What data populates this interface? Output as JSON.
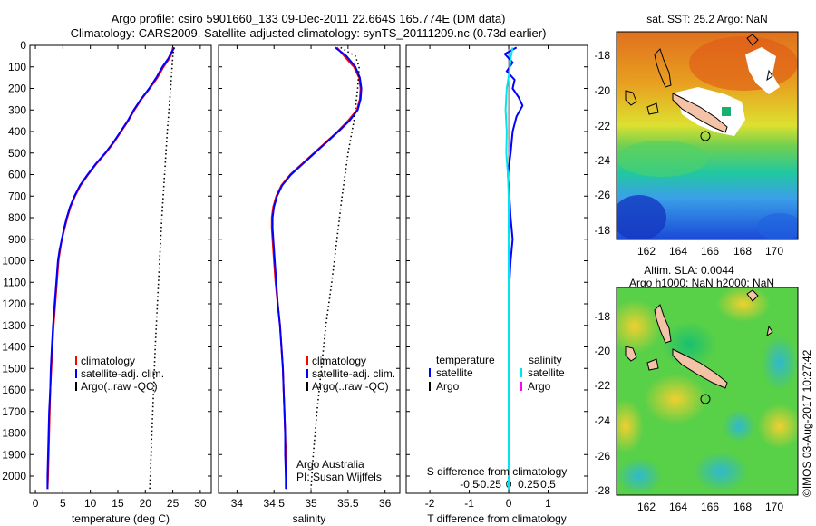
{
  "header": {
    "title_line1": "Argo profile: csiro 5901660_133 09-Dec-2011 22.664S 165.774E (DM data)",
    "title_line2": "Climatology: CARS2009. Satellite-adjusted climatology: synTS_20111209.nc (0.73d earlier)"
  },
  "colors": {
    "climatology": "#ff0000",
    "satellite": "#0000ff",
    "argo": "#000000",
    "satellite_s": "#00e5ee",
    "argo_s": "#ff00ff",
    "land": "#f4c2a6"
  },
  "chart_data": [
    {
      "type": "line",
      "panel": "temperature",
      "xlabel": "temperature (deg C)",
      "ylabel": "",
      "xlim": [
        -1,
        32
      ],
      "ylim": [
        2080,
        0
      ],
      "xticks": [
        0,
        5,
        10,
        15,
        20,
        25,
        30
      ],
      "yticks": [
        0,
        100,
        200,
        300,
        400,
        500,
        600,
        700,
        800,
        900,
        1000,
        1100,
        1200,
        1300,
        1400,
        1500,
        1600,
        1700,
        1800,
        1900,
        2000
      ],
      "legend": [
        "climatology",
        "satellite-adj. clim.",
        "Argo(..raw -QC)"
      ],
      "series": [
        {
          "name": "climatology",
          "style": "solid",
          "points": [
            [
              25,
              10
            ],
            [
              24.9,
              30
            ],
            [
              24.4,
              60
            ],
            [
              23.3,
              100
            ],
            [
              22.2,
              150
            ],
            [
              20.8,
              200
            ],
            [
              19.3,
              250
            ],
            [
              18,
              300
            ],
            [
              16.9,
              350
            ],
            [
              15.6,
              400
            ],
            [
              14.3,
              450
            ],
            [
              12.8,
              500
            ],
            [
              11.1,
              550
            ],
            [
              9.6,
              600
            ],
            [
              8.2,
              650
            ],
            [
              7.2,
              700
            ],
            [
              6.4,
              750
            ],
            [
              5.8,
              800
            ],
            [
              5.3,
              850
            ],
            [
              4.8,
              900
            ],
            [
              4.5,
              950
            ],
            [
              4.2,
              1000
            ],
            [
              3.9,
              1100
            ],
            [
              3.6,
              1200
            ],
            [
              3.3,
              1300
            ],
            [
              3.1,
              1400
            ],
            [
              2.9,
              1500
            ],
            [
              2.7,
              1600
            ],
            [
              2.6,
              1700
            ],
            [
              2.5,
              1800
            ],
            [
              2.4,
              1900
            ],
            [
              2.3,
              2000
            ],
            [
              2.2,
              2060
            ]
          ]
        },
        {
          "name": "satellite-adj. clim.",
          "style": "solid",
          "points": [
            [
              25.3,
              10
            ],
            [
              24.8,
              30
            ],
            [
              24.2,
              60
            ],
            [
              23.1,
              100
            ],
            [
              22,
              150
            ],
            [
              20.7,
              200
            ],
            [
              19.2,
              250
            ],
            [
              17.9,
              300
            ],
            [
              16.8,
              350
            ],
            [
              15.5,
              400
            ],
            [
              14.2,
              450
            ],
            [
              12.7,
              500
            ],
            [
              11,
              550
            ],
            [
              9.5,
              600
            ],
            [
              8.1,
              650
            ],
            [
              7.1,
              700
            ],
            [
              6.3,
              750
            ],
            [
              5.7,
              800
            ],
            [
              5.2,
              850
            ],
            [
              4.8,
              900
            ],
            [
              4.4,
              950
            ],
            [
              4.1,
              1000
            ],
            [
              3.8,
              1100
            ],
            [
              3.5,
              1200
            ],
            [
              3.2,
              1300
            ],
            [
              3,
              1400
            ],
            [
              2.8,
              1500
            ],
            [
              2.7,
              1600
            ],
            [
              2.5,
              1700
            ],
            [
              2.4,
              1800
            ],
            [
              2.3,
              1900
            ],
            [
              2.2,
              2000
            ],
            [
              2.2,
              2060
            ]
          ]
        },
        {
          "name": "Argo(..raw -QC)",
          "style": "dotted",
          "points": [
            [
              25.2,
              10
            ],
            [
              25,
              50
            ],
            [
              24.6,
              200
            ],
            [
              24,
              400
            ],
            [
              23.5,
              600
            ],
            [
              23,
              800
            ],
            [
              22.6,
              1000
            ],
            [
              22.2,
              1200
            ],
            [
              21.8,
              1400
            ],
            [
              21.5,
              1600
            ],
            [
              21.2,
              1800
            ],
            [
              20.9,
              2000
            ],
            [
              20.8,
              2060
            ]
          ]
        }
      ]
    },
    {
      "type": "line",
      "panel": "salinity",
      "xlabel": "salinity",
      "xlim": [
        33.75,
        36.2
      ],
      "ylim": [
        2080,
        0
      ],
      "xticks": [
        34,
        34.5,
        35,
        35.5,
        36
      ],
      "xticklabels": [
        "34",
        "34.5",
        "35",
        "35.5",
        "36"
      ],
      "legend": [
        "climatology",
        "satellite-adj. clim.",
        "Argo(..raw -QC)"
      ],
      "annotations": [
        "Argo Australia",
        "PI: Susan Wijffels"
      ],
      "series": [
        {
          "name": "climatology",
          "style": "solid",
          "points": [
            [
              35.35,
              10
            ],
            [
              35.45,
              50
            ],
            [
              35.58,
              100
            ],
            [
              35.65,
              150
            ],
            [
              35.67,
              200
            ],
            [
              35.66,
              250
            ],
            [
              35.62,
              300
            ],
            [
              35.5,
              350
            ],
            [
              35.36,
              400
            ],
            [
              35.2,
              450
            ],
            [
              35.04,
              500
            ],
            [
              34.88,
              550
            ],
            [
              34.72,
              600
            ],
            [
              34.6,
              650
            ],
            [
              34.53,
              700
            ],
            [
              34.49,
              750
            ],
            [
              34.47,
              800
            ],
            [
              34.47,
              850
            ],
            [
              34.48,
              900
            ],
            [
              34.5,
              1000
            ],
            [
              34.52,
              1100
            ],
            [
              34.55,
              1200
            ],
            [
              34.58,
              1300
            ],
            [
              34.6,
              1400
            ],
            [
              34.62,
              1500
            ],
            [
              34.63,
              1600
            ],
            [
              34.64,
              1700
            ],
            [
              34.65,
              1800
            ],
            [
              34.66,
              1900
            ],
            [
              34.66,
              2000
            ],
            [
              34.67,
              2060
            ]
          ]
        },
        {
          "name": "satellite-adj. clim.",
          "style": "solid",
          "points": [
            [
              35.33,
              10
            ],
            [
              35.48,
              50
            ],
            [
              35.6,
              100
            ],
            [
              35.66,
              150
            ],
            [
              35.68,
              200
            ],
            [
              35.67,
              250
            ],
            [
              35.63,
              300
            ],
            [
              35.52,
              350
            ],
            [
              35.37,
              400
            ],
            [
              35.21,
              450
            ],
            [
              35.05,
              500
            ],
            [
              34.89,
              550
            ],
            [
              34.73,
              600
            ],
            [
              34.61,
              650
            ],
            [
              34.54,
              700
            ],
            [
              34.5,
              750
            ],
            [
              34.48,
              800
            ],
            [
              34.48,
              850
            ],
            [
              34.49,
              900
            ],
            [
              34.51,
              1000
            ],
            [
              34.53,
              1100
            ],
            [
              34.55,
              1200
            ],
            [
              34.58,
              1300
            ],
            [
              34.6,
              1400
            ],
            [
              34.62,
              1500
            ],
            [
              34.63,
              1600
            ],
            [
              34.64,
              1700
            ],
            [
              34.65,
              1800
            ],
            [
              34.65,
              1900
            ],
            [
              34.66,
              2000
            ],
            [
              34.66,
              2060
            ]
          ]
        },
        {
          "name": "Argo(..raw -QC)",
          "style": "dotted",
          "points": [
            [
              35.4,
              10
            ],
            [
              35.6,
              50
            ],
            [
              35.65,
              100
            ],
            [
              35.63,
              200
            ],
            [
              35.58,
              350
            ],
            [
              35.5,
              500
            ],
            [
              35.42,
              700
            ],
            [
              35.35,
              900
            ],
            [
              35.28,
              1100
            ],
            [
              35.2,
              1300
            ],
            [
              35.14,
              1500
            ],
            [
              35.08,
              1700
            ],
            [
              35.03,
              1900
            ],
            [
              35.0,
              2060
            ]
          ]
        }
      ]
    },
    {
      "type": "line",
      "panel": "difference",
      "xlabel": "T difference from climatology",
      "top_label": "S difference from climatology",
      "xlim": [
        -2.6,
        2
      ],
      "ylim": [
        2080,
        0
      ],
      "xticks": [
        -2,
        -1,
        0,
        1
      ],
      "xticklabels": [
        "-2",
        "-1",
        "0",
        "1"
      ],
      "top_ticklabels": [
        "-0.5",
        "-0.25",
        "0",
        "0.25",
        "0.5"
      ],
      "legend_groups": [
        {
          "header": "temperature",
          "items": [
            "satellite",
            "Argo"
          ]
        },
        {
          "header": "salinity",
          "items": [
            "satellite",
            "Argo"
          ]
        }
      ],
      "series": [
        {
          "name": "temperature satellite",
          "style": "solid",
          "points": [
            [
              0.2,
              10
            ],
            [
              -0.1,
              40
            ],
            [
              0.1,
              80
            ],
            [
              -0.05,
              120
            ],
            [
              0.15,
              160
            ],
            [
              0.1,
              200
            ],
            [
              0.25,
              240
            ],
            [
              0.35,
              280
            ],
            [
              0.2,
              330
            ],
            [
              0.1,
              400
            ],
            [
              0.05,
              500
            ],
            [
              -0.02,
              600
            ],
            [
              0.02,
              700
            ],
            [
              0.05,
              800
            ],
            [
              0.1,
              900
            ],
            [
              0.05,
              1000
            ],
            [
              0.02,
              1100
            ],
            [
              0,
              1300
            ],
            [
              0,
              1600
            ],
            [
              0,
              2060
            ]
          ]
        },
        {
          "name": "salinity satellite",
          "style": "solid",
          "points": [
            [
              0.1,
              10
            ],
            [
              0.05,
              60
            ],
            [
              0.02,
              120
            ],
            [
              -0.05,
              200
            ],
            [
              -0.08,
              300
            ],
            [
              -0.05,
              400
            ],
            [
              -0.06,
              500
            ],
            [
              -0.02,
              600
            ],
            [
              0,
              700
            ],
            [
              0,
              800
            ],
            [
              0,
              900
            ],
            [
              0,
              1000
            ],
            [
              0,
              1300
            ],
            [
              0,
              2060
            ]
          ]
        }
      ]
    }
  ],
  "maps": [
    {
      "title": "sat. SST: 25.2 Argo: NaN",
      "xticks": [
        "162",
        "164",
        "166",
        "168",
        "170"
      ],
      "yticks": [
        "-18",
        "-20",
        "-22",
        "-24",
        "-26"
      ]
    },
    {
      "title_line1": "Altim. SLA: 0.0044",
      "title_line2": "Argo h1000: NaN h2000: NaN",
      "xticks": [
        "162",
        "164",
        "166",
        "168",
        "170"
      ],
      "yticks": [
        "-18",
        "-20",
        "-22",
        "-24",
        "-26",
        "-28"
      ]
    }
  ],
  "credit": "©IMOS 03-Aug-2017 10:27:42"
}
